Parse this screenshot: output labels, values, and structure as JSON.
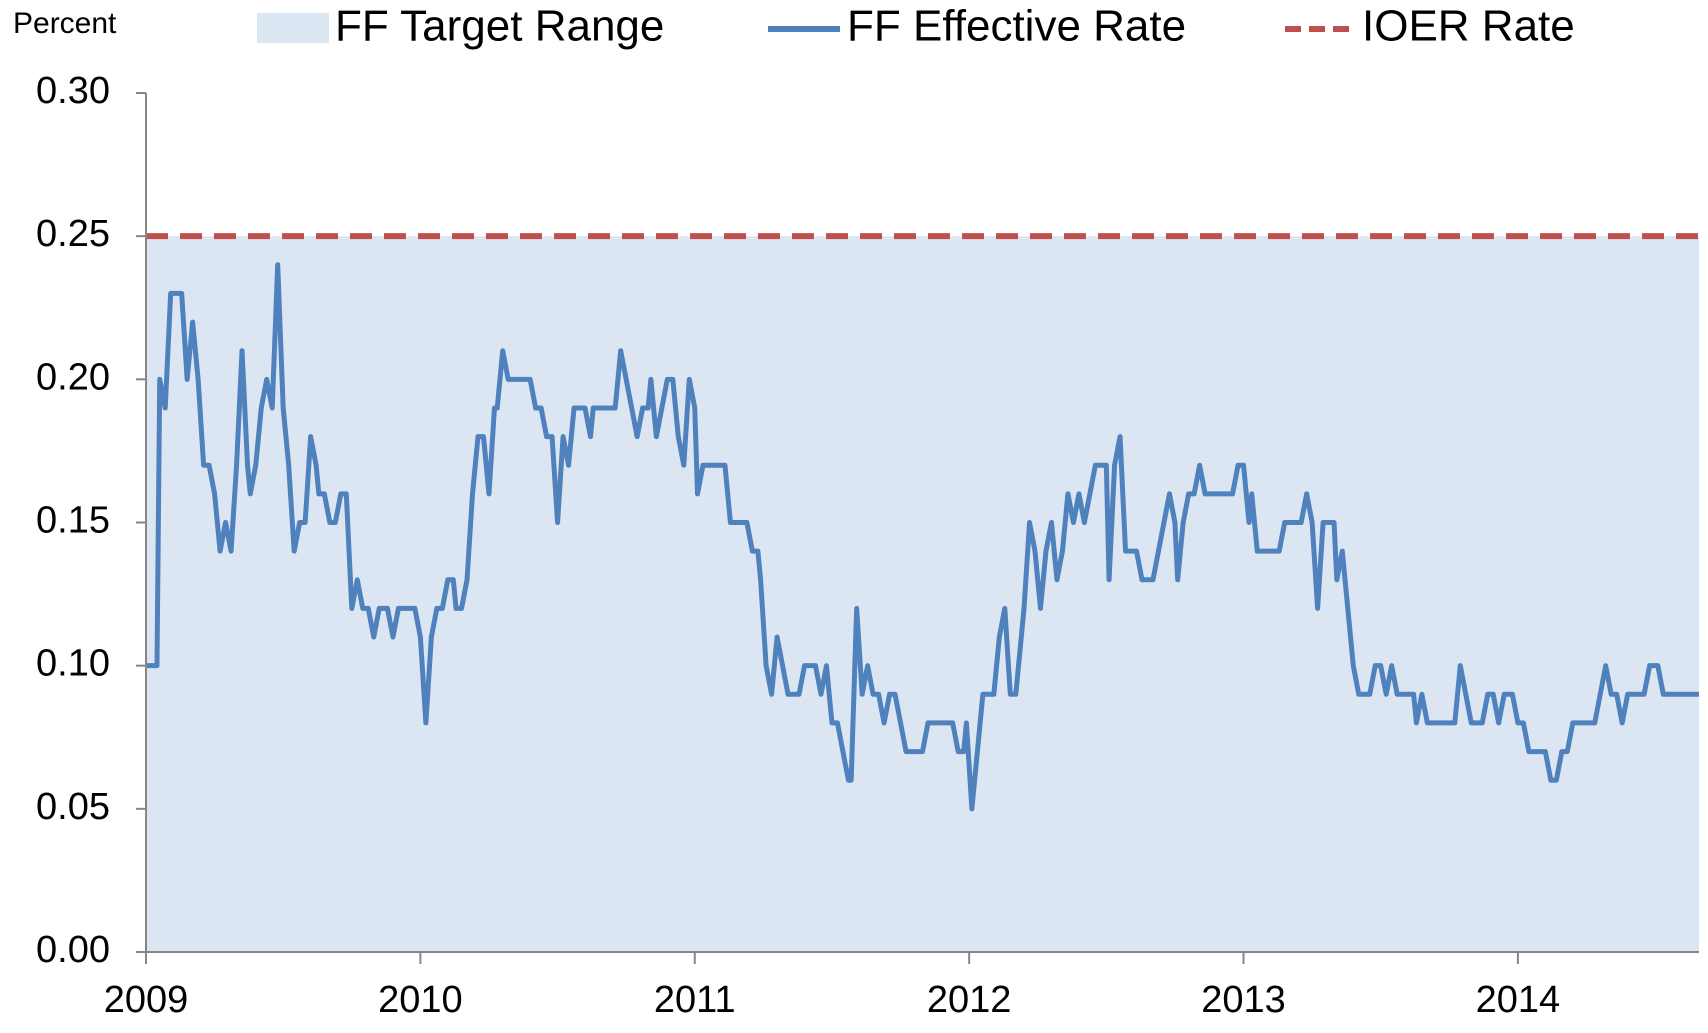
{
  "chart_data": {
    "type": "line",
    "y_unit_label": "Percent",
    "xlim": [
      2009,
      2014.66
    ],
    "xticks": [
      2009,
      2010,
      2011,
      2012,
      2013,
      2014
    ],
    "ylim": [
      0,
      0.3
    ],
    "yticks": [
      {
        "value": 0,
        "label": "0.00"
      },
      {
        "value": 0.05,
        "label": "0.05"
      },
      {
        "value": 0.1,
        "label": "0.10"
      },
      {
        "value": 0.15,
        "label": "0.15"
      },
      {
        "value": 0.2,
        "label": "0.20"
      },
      {
        "value": 0.25,
        "label": "0.25"
      },
      {
        "value": 0.3,
        "label": "0.30"
      }
    ],
    "grid": false,
    "legend": "top",
    "series": [
      {
        "name": "FF Target Range",
        "color": "#dce6f2",
        "style": "area",
        "x": [
          2009,
          2014.66
        ],
        "values": [
          0.25,
          0.25
        ]
      },
      {
        "name": "FF Effective Rate",
        "color": "#4f81bd",
        "style": "solid",
        "x": [
          2009,
          2009.04,
          2009.05,
          2009.07,
          2009.09,
          2009.13,
          2009.15,
          2009.17,
          2009.19,
          2009.21,
          2009.23,
          2009.25,
          2009.27,
          2009.29,
          2009.31,
          2009.33,
          2009.35,
          2009.37,
          2009.38,
          2009.4,
          2009.42,
          2009.44,
          2009.46,
          2009.48,
          2009.5,
          2009.52,
          2009.54,
          2009.56,
          2009.58,
          2009.6,
          2009.62,
          2009.63,
          2009.65,
          2009.67,
          2009.69,
          2009.71,
          2009.73,
          2009.75,
          2009.77,
          2009.79,
          2009.81,
          2009.83,
          2009.85,
          2009.88,
          2009.9,
          2009.92,
          2009.98,
          2010,
          2010.02,
          2010.04,
          2010.06,
          2010.08,
          2010.1,
          2010.12,
          2010.13,
          2010.15,
          2010.17,
          2010.19,
          2010.21,
          2010.23,
          2010.25,
          2010.27,
          2010.28,
          2010.3,
          2010.32,
          2010.4,
          2010.42,
          2010.44,
          2010.46,
          2010.48,
          2010.5,
          2010.52,
          2010.54,
          2010.56,
          2010.6,
          2010.62,
          2010.63,
          2010.71,
          2010.73,
          2010.75,
          2010.77,
          2010.79,
          2010.81,
          2010.83,
          2010.84,
          2010.86,
          2010.88,
          2010.9,
          2010.92,
          2010.94,
          2010.96,
          2010.98,
          2011,
          2011.01,
          2011.03,
          2011.11,
          2011.13,
          2011.19,
          2011.21,
          2011.23,
          2011.24,
          2011.26,
          2011.28,
          2011.3,
          2011.32,
          2011.34,
          2011.38,
          2011.4,
          2011.44,
          2011.46,
          2011.48,
          2011.5,
          2011.52,
          2011.54,
          2011.56,
          2011.57,
          2011.59,
          2011.61,
          2011.63,
          2011.65,
          2011.67,
          2011.69,
          2011.71,
          2011.73,
          2011.75,
          2011.77,
          2011.83,
          2011.85,
          2011.94,
          2011.96,
          2011.98,
          2011.99,
          2012.01,
          2012.03,
          2012.05,
          2012.09,
          2012.11,
          2012.13,
          2012.15,
          2012.17,
          2012.19,
          2012.2,
          2012.22,
          2012.24,
          2012.26,
          2012.28,
          2012.3,
          2012.32,
          2012.34,
          2012.36,
          2012.38,
          2012.4,
          2012.42,
          2012.44,
          2012.46,
          2012.5,
          2012.51,
          2012.53,
          2012.55,
          2012.57,
          2012.61,
          2012.63,
          2012.67,
          2012.69,
          2012.71,
          2012.73,
          2012.75,
          2012.76,
          2012.78,
          2012.8,
          2012.82,
          2012.84,
          2012.86,
          2012.96,
          2012.98,
          2013,
          2013.02,
          2013.03,
          2013.05,
          2013.13,
          2013.15,
          2013.19,
          2013.21,
          2013.23,
          2013.25,
          2013.27,
          2013.29,
          2013.33,
          2013.34,
          2013.36,
          2013.38,
          2013.4,
          2013.42,
          2013.46,
          2013.48,
          2013.5,
          2013.52,
          2013.54,
          2013.56,
          2013.62,
          2013.63,
          2013.65,
          2013.67,
          2013.77,
          2013.79,
          2013.81,
          2013.83,
          2013.87,
          2013.89,
          2013.91,
          2013.93,
          2013.95,
          2013.98,
          2014,
          2014.02,
          2014.04,
          2014.1,
          2014.12,
          2014.14,
          2014.16,
          2014.18,
          2014.2,
          2014.28,
          2014.3,
          2014.32,
          2014.34,
          2014.36,
          2014.38,
          2014.4,
          2014.46,
          2014.48,
          2014.51,
          2014.53,
          2014.66
        ],
        "values": [
          0.1,
          0.1,
          0.2,
          0.19,
          0.23,
          0.23,
          0.2,
          0.22,
          0.2,
          0.17,
          0.17,
          0.16,
          0.14,
          0.15,
          0.14,
          0.17,
          0.21,
          0.17,
          0.16,
          0.17,
          0.19,
          0.2,
          0.19,
          0.24,
          0.19,
          0.17,
          0.14,
          0.15,
          0.15,
          0.18,
          0.17,
          0.16,
          0.16,
          0.15,
          0.15,
          0.16,
          0.16,
          0.12,
          0.13,
          0.12,
          0.12,
          0.11,
          0.12,
          0.12,
          0.11,
          0.12,
          0.12,
          0.11,
          0.08,
          0.11,
          0.12,
          0.12,
          0.13,
          0.13,
          0.12,
          0.12,
          0.13,
          0.16,
          0.18,
          0.18,
          0.16,
          0.19,
          0.19,
          0.21,
          0.2,
          0.2,
          0.19,
          0.19,
          0.18,
          0.18,
          0.15,
          0.18,
          0.17,
          0.19,
          0.19,
          0.18,
          0.19,
          0.19,
          0.21,
          0.2,
          0.19,
          0.18,
          0.19,
          0.19,
          0.2,
          0.18,
          0.19,
          0.2,
          0.2,
          0.18,
          0.17,
          0.2,
          0.19,
          0.16,
          0.17,
          0.17,
          0.15,
          0.15,
          0.14,
          0.14,
          0.13,
          0.1,
          0.09,
          0.11,
          0.1,
          0.09,
          0.09,
          0.1,
          0.1,
          0.09,
          0.1,
          0.08,
          0.08,
          0.07,
          0.06,
          0.06,
          0.12,
          0.09,
          0.1,
          0.09,
          0.09,
          0.08,
          0.09,
          0.09,
          0.08,
          0.07,
          0.07,
          0.08,
          0.08,
          0.07,
          0.07,
          0.08,
          0.05,
          0.07,
          0.09,
          0.09,
          0.11,
          0.12,
          0.09,
          0.09,
          0.11,
          0.12,
          0.15,
          0.14,
          0.12,
          0.14,
          0.15,
          0.13,
          0.14,
          0.16,
          0.15,
          0.16,
          0.15,
          0.16,
          0.17,
          0.17,
          0.13,
          0.17,
          0.18,
          0.14,
          0.14,
          0.13,
          0.13,
          0.14,
          0.15,
          0.16,
          0.15,
          0.13,
          0.15,
          0.16,
          0.16,
          0.17,
          0.16,
          0.16,
          0.17,
          0.17,
          0.15,
          0.16,
          0.14,
          0.14,
          0.15,
          0.15,
          0.15,
          0.16,
          0.15,
          0.12,
          0.15,
          0.15,
          0.13,
          0.14,
          0.12,
          0.1,
          0.09,
          0.09,
          0.1,
          0.1,
          0.09,
          0.1,
          0.09,
          0.09,
          0.08,
          0.09,
          0.08,
          0.08,
          0.1,
          0.09,
          0.08,
          0.08,
          0.09,
          0.09,
          0.08,
          0.09,
          0.09,
          0.08,
          0.08,
          0.07,
          0.07,
          0.06,
          0.06,
          0.07,
          0.07,
          0.08,
          0.08,
          0.09,
          0.1,
          0.09,
          0.09,
          0.08,
          0.09,
          0.09,
          0.1,
          0.1,
          0.09,
          0.09
        ]
      },
      {
        "name": "IOER Rate",
        "color": "#c0504d",
        "style": "dashed",
        "x": [
          2009,
          2014.66
        ],
        "values": [
          0.25,
          0.25
        ]
      }
    ]
  }
}
